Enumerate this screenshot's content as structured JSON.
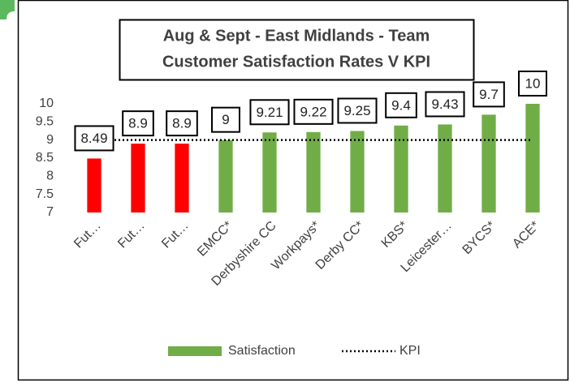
{
  "chart_data": {
    "type": "bar",
    "title": [
      "Aug & Sept - East Midlands - Team",
      "Customer Satisfaction Rates V KPI"
    ],
    "categories": [
      "Fut…",
      "Fut…",
      "Fut…",
      "EMCC*",
      "Derbyshire CC",
      "Workpays*",
      "Derby CC*",
      "KBS*",
      "Leicester…",
      "BYCS*",
      "ACE*"
    ],
    "series": [
      {
        "name": "Satisfaction",
        "color": "#70ad47",
        "colors": [
          "#ff0000",
          "#ff0000",
          "#ff0000",
          "#70ad47",
          "#70ad47",
          "#70ad47",
          "#70ad47",
          "#70ad47",
          "#70ad47",
          "#70ad47",
          "#70ad47"
        ],
        "values": [
          8.49,
          8.9,
          8.9,
          9,
          9.21,
          9.22,
          9.25,
          9.4,
          9.43,
          9.7,
          10
        ]
      },
      {
        "name": "KPI",
        "color": "#000000",
        "type": "line",
        "dash": "dotted",
        "values": [
          9,
          9,
          9,
          9,
          9,
          9,
          9,
          9,
          9,
          9,
          9
        ]
      }
    ],
    "ylim": [
      7,
      10
    ],
    "yticks": [
      7,
      7.5,
      8,
      8.5,
      9,
      9.5,
      10
    ],
    "grid": false,
    "legend": "bottom"
  }
}
